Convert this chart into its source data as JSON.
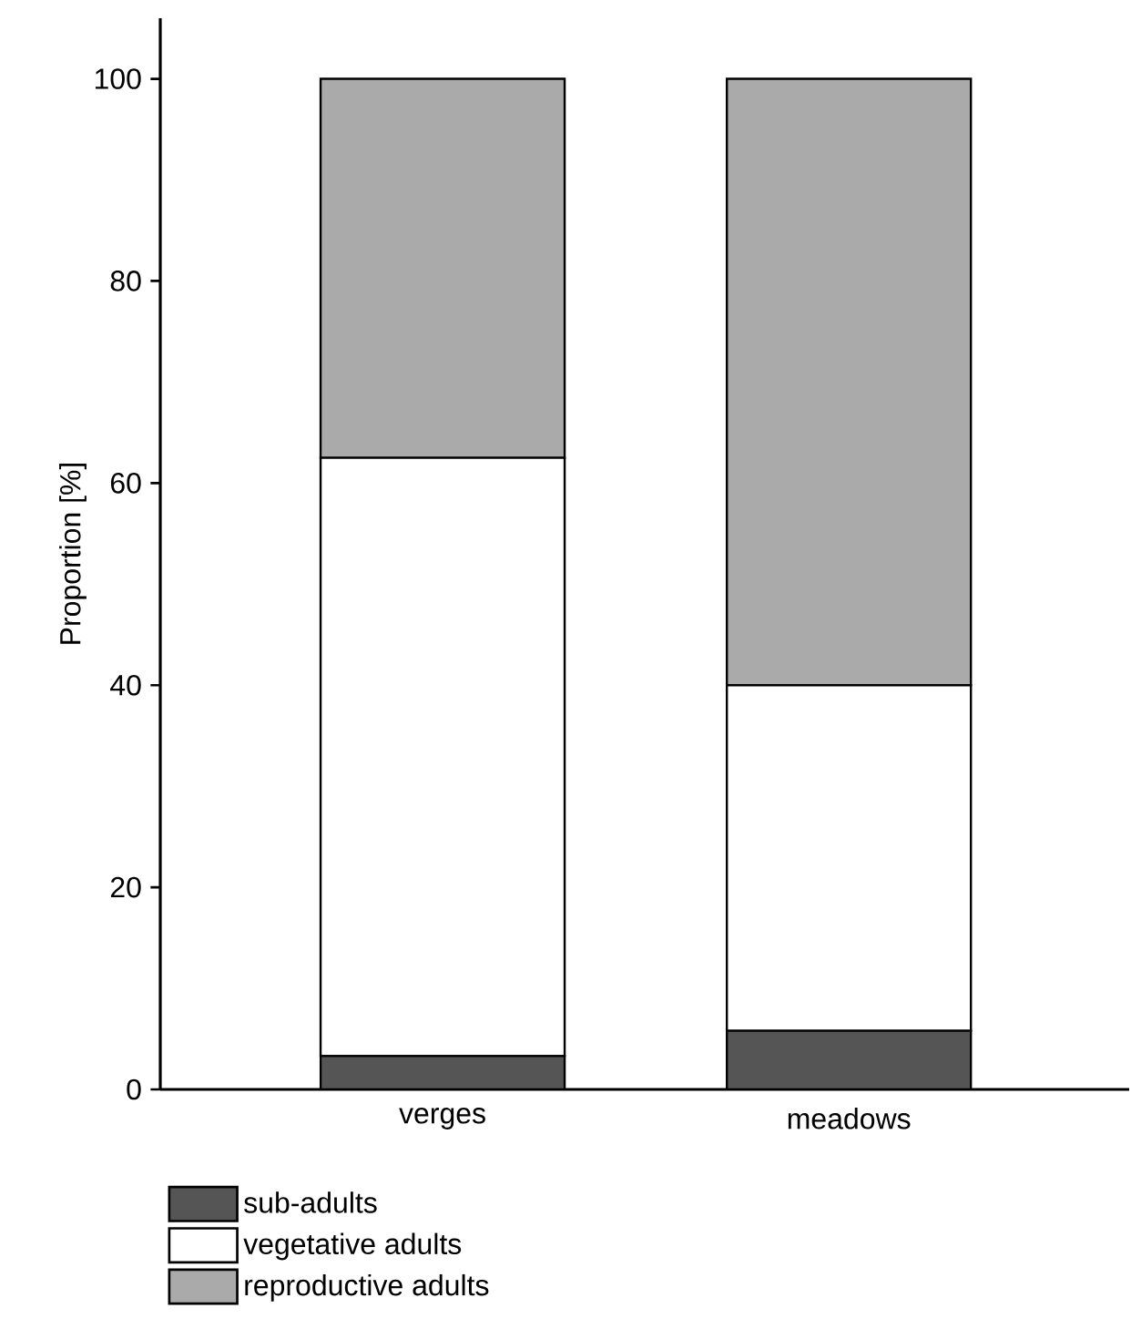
{
  "chart_data": {
    "type": "bar",
    "stacked": true,
    "ylabel": "Proportion [%]",
    "categories": [
      "verges",
      "meadows"
    ],
    "series": [
      {
        "name": "sub-adults",
        "color": "#555555",
        "values": [
          3.3,
          5.8
        ]
      },
      {
        "name": "vegetative adults",
        "color": "#ffffff",
        "values": [
          59.2,
          34.2
        ]
      },
      {
        "name": "reproductive adults",
        "color": "#aaaaaa",
        "values": [
          37.5,
          60.0
        ]
      }
    ],
    "ylim": [
      0,
      106
    ],
    "yticks": [
      0,
      20,
      40,
      60,
      80,
      100
    ],
    "legend": "bottom"
  }
}
